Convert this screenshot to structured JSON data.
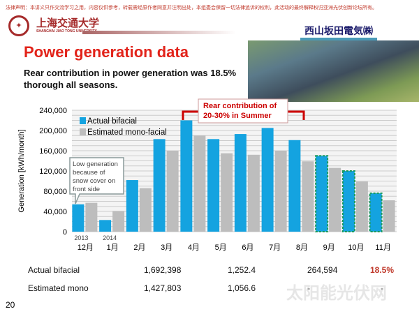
{
  "header": {
    "disclaimer": "法律声明：本讲义只作交流学习之用，内容仅供参考，转载需经原作者同意并注明出处，本组委会保留一切法律追诉的权利，此活动的最终解释权归亚洲光伏创新论坛所有。",
    "university_cn": "上海交通大学",
    "university_en": "SHANGHAI JIAO TONG UNIVERSITY",
    "company": "西山坂田電気㈱"
  },
  "title": "Power generation data",
  "subtitle": "Rear contribution in power generation was 18.5% thorough all seasons.",
  "chart_data": {
    "type": "bar",
    "ylabel": "Generation [kWh/month]",
    "ylim": [
      0,
      240000
    ],
    "yticks": [
      "0",
      "40,000",
      "80,000",
      "120,000",
      "160,000",
      "200,000",
      "240,000"
    ],
    "categories": [
      "12月",
      "1月",
      "2月",
      "3月",
      "4月",
      "5月",
      "6月",
      "7月",
      "8月",
      "9月",
      "10月",
      "11月"
    ],
    "year_labels": [
      "2013",
      "2014"
    ],
    "series": [
      {
        "name": "Actual bifacial",
        "color": "#14a3e0",
        "values": [
          54000,
          23000,
          102000,
          183000,
          220000,
          183000,
          193000,
          205000,
          181000,
          150000,
          120000,
          76000
        ]
      },
      {
        "name": "Estimated mono-facial",
        "color": "#bdbdbd",
        "values": [
          57000,
          41000,
          86000,
          160000,
          190000,
          155000,
          152000,
          160000,
          139000,
          126000,
          99000,
          62000
        ]
      }
    ],
    "annotations": {
      "snow": "Low generation because of snow cover on front side",
      "summer": "Rear contribution of 20-30% in Summer"
    }
  },
  "table": [
    {
      "label": "Actual bifacial",
      "c1": "1,692,398",
      "c2": "1,252.4",
      "c3": "264,594",
      "c4": "18.5%"
    },
    {
      "label": "Estimated mono",
      "c1": "1,427,803",
      "c2": "1,056.6",
      "c3": "-",
      "c4": "-"
    }
  ],
  "page_number": "20",
  "watermark": "太阳能光伏网"
}
